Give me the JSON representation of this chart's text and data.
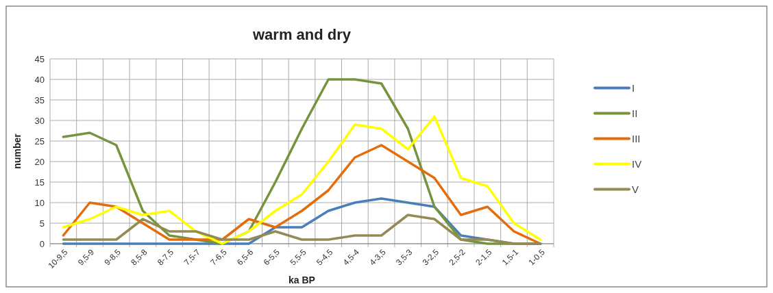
{
  "chart_data": {
    "type": "line",
    "title": "warm and dry",
    "xlabel": "ka BP",
    "ylabel": "number",
    "categories": [
      "10-9,5",
      "9,5-9",
      "9-8,5",
      "8,5-8",
      "8-7,5",
      "7,5-7",
      "7-6,5",
      "6,5-6",
      "6-5,5",
      "5,5-5",
      "5-4,5",
      "4,5-4",
      "4-3,5",
      "3,5-3",
      "3-2,5",
      "2,5-2",
      "2-1,5",
      "1,5-1",
      "1-0,5"
    ],
    "series": [
      {
        "name": "I",
        "color": "#4a7ebb",
        "values": [
          0,
          0,
          0,
          0,
          0,
          0,
          0,
          0,
          4,
          4,
          8,
          10,
          11,
          10,
          9,
          2,
          1,
          0,
          0
        ]
      },
      {
        "name": "II",
        "color": "#77933c",
        "values": [
          26,
          27,
          24,
          8,
          2,
          1,
          0,
          3,
          15,
          28,
          40,
          40,
          39,
          28,
          9,
          1,
          0,
          0,
          0
        ]
      },
      {
        "name": "III",
        "color": "#e46c0a",
        "values": [
          2,
          10,
          9,
          5,
          1,
          1,
          1,
          6,
          4,
          8,
          13,
          21,
          24,
          20,
          16,
          7,
          9,
          3,
          0
        ]
      },
      {
        "name": "IV",
        "color": "#ffff00",
        "values": [
          4,
          6,
          9,
          7,
          8,
          3,
          0,
          3,
          8,
          12,
          20,
          29,
          28,
          23,
          31,
          16,
          14,
          5,
          1
        ]
      },
      {
        "name": "V",
        "color": "#948a54",
        "values": [
          1,
          1,
          1,
          6,
          3,
          3,
          1,
          1,
          3,
          1,
          1,
          2,
          2,
          7,
          6,
          1,
          1,
          0,
          0
        ]
      }
    ],
    "ylim": [
      0,
      45
    ],
    "yticks": [
      0,
      5,
      10,
      15,
      20,
      25,
      30,
      35,
      40,
      45
    ],
    "grid": true,
    "legend": "right",
    "marker": "none",
    "line_style": "solid"
  }
}
